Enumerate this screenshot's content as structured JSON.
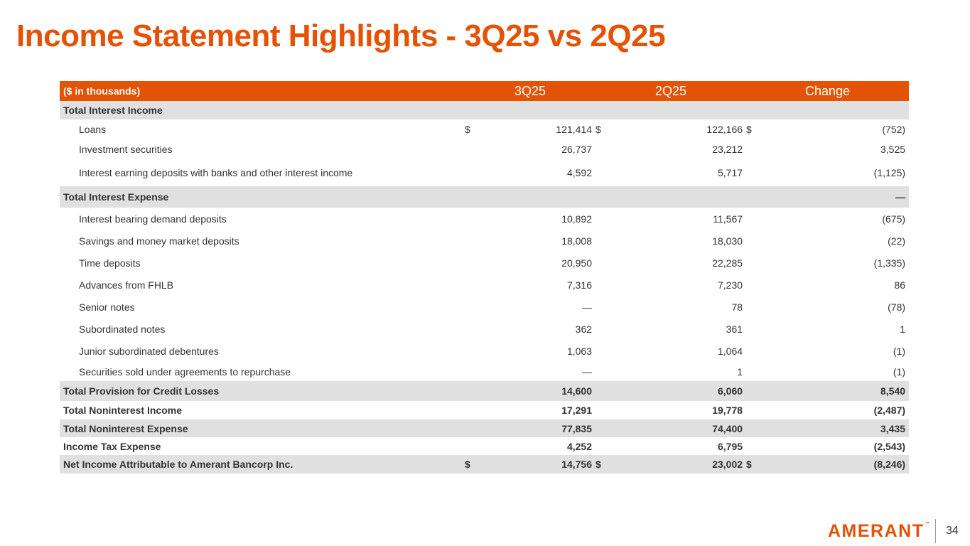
{
  "title": "Income Statement Highlights - 3Q25 vs 2Q25",
  "table": {
    "units_label": "($ in thousands)",
    "columns": [
      "3Q25",
      "2Q25",
      "Change"
    ],
    "rows": [
      {
        "label": "Total Interest Income",
        "style": "section",
        "a_sym": "",
        "a": "",
        "b_sym": "",
        "b": "",
        "c_sym": "",
        "c": ""
      },
      {
        "label": "Loans",
        "style": "item",
        "a_sym": "$",
        "a": "121,414",
        "b_sym": "$",
        "b": "122,166",
        "c_sym": "$",
        "c": "(752)"
      },
      {
        "label": "Investment securities",
        "style": "item",
        "a_sym": "",
        "a": "26,737",
        "b_sym": "",
        "b": "23,212",
        "c_sym": "",
        "c": "3,525"
      },
      {
        "label": "Interest earning deposits with banks and other interest income",
        "style": "item",
        "a_sym": "",
        "a": "4,592",
        "b_sym": "",
        "b": "5,717",
        "c_sym": "",
        "c": "(1,125)"
      },
      {
        "label": "Total Interest Expense",
        "style": "section",
        "a_sym": "",
        "a": "",
        "b_sym": "",
        "b": "",
        "c_sym": "",
        "c": "—"
      },
      {
        "label": "Interest bearing demand deposits",
        "style": "item",
        "a_sym": "",
        "a": "10,892",
        "b_sym": "",
        "b": "11,567",
        "c_sym": "",
        "c": "(675)"
      },
      {
        "label": "Savings and money market deposits",
        "style": "item",
        "a_sym": "",
        "a": "18,008",
        "b_sym": "",
        "b": "18,030",
        "c_sym": "",
        "c": "(22)"
      },
      {
        "label": "Time deposits",
        "style": "item",
        "a_sym": "",
        "a": "20,950",
        "b_sym": "",
        "b": "22,285",
        "c_sym": "",
        "c": "(1,335)"
      },
      {
        "label": "Advances from FHLB",
        "style": "item",
        "a_sym": "",
        "a": "7,316",
        "b_sym": "",
        "b": "7,230",
        "c_sym": "",
        "c": "86"
      },
      {
        "label": "Senior notes",
        "style": "item",
        "a_sym": "",
        "a": "—",
        "b_sym": "",
        "b": "78",
        "c_sym": "",
        "c": "(78)"
      },
      {
        "label": "Subordinated notes",
        "style": "item",
        "a_sym": "",
        "a": "362",
        "b_sym": "",
        "b": "361",
        "c_sym": "",
        "c": "1"
      },
      {
        "label": "Junior subordinated debentures",
        "style": "item",
        "a_sym": "",
        "a": "1,063",
        "b_sym": "",
        "b": "1,064",
        "c_sym": "",
        "c": "(1)"
      },
      {
        "label": "Securities sold under agreements to repurchase",
        "style": "item",
        "a_sym": "",
        "a": "—",
        "b_sym": "",
        "b": "1",
        "c_sym": "",
        "c": "(1)"
      },
      {
        "label": "Total Provision for Credit Losses",
        "style": "total-shaded",
        "a_sym": "",
        "a": "14,600",
        "b_sym": "",
        "b": "6,060",
        "c_sym": "",
        "c": "8,540"
      },
      {
        "label": "Total Noninterest Income",
        "style": "total",
        "a_sym": "",
        "a": "17,291",
        "b_sym": "",
        "b": "19,778",
        "c_sym": "",
        "c": "(2,487)"
      },
      {
        "label": "Total Noninterest Expense",
        "style": "total-shaded",
        "a_sym": "",
        "a": "77,835",
        "b_sym": "",
        "b": "74,400",
        "c_sym": "",
        "c": "3,435"
      },
      {
        "label": "Income Tax Expense",
        "style": "total",
        "a_sym": "",
        "a": "4,252",
        "b_sym": "",
        "b": "6,795",
        "c_sym": "",
        "c": "(2,543)"
      },
      {
        "label": "Net Income Attributable to Amerant Bancorp Inc.",
        "style": "total-shaded-last",
        "a_sym": "$",
        "a": "14,756",
        "b_sym": "$",
        "b": "23,002",
        "c_sym": "$",
        "c": "(8,246)"
      }
    ]
  },
  "footer": {
    "logo_text": "AMERANT",
    "logo_mark": "℠",
    "page_number": "34"
  },
  "colors": {
    "brand": "#e35205",
    "shade": "#e0e0e0"
  }
}
